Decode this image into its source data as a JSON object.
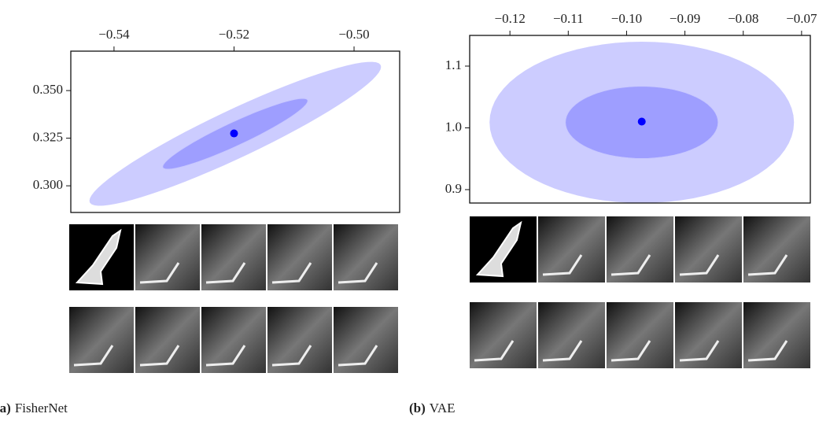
{
  "chart_data": [
    {
      "type": "scatter",
      "panel_label": "(a)",
      "title": "FisherNet",
      "x": [
        -0.52
      ],
      "y": [
        0.3275
      ],
      "color": "#0000ff",
      "ellipses": [
        {
          "cx": -0.5198,
          "cy": 0.3273,
          "x_halfwidth": 0.0243,
          "y_halfwidth": 0.0378,
          "correlation": 0.93,
          "color": "#ccccff"
        },
        {
          "cx": -0.5198,
          "cy": 0.3273,
          "x_halfwidth": 0.0121,
          "y_halfwidth": 0.0186,
          "correlation": 0.93,
          "color": "#9e9eff"
        }
      ],
      "xlim": [
        -0.5472,
        -0.4924
      ],
      "ylim": [
        0.286,
        0.3707
      ],
      "xticks": [
        {
          "value": -0.54,
          "label": "−0.54"
        },
        {
          "value": -0.52,
          "label": "−0.52"
        },
        {
          "value": -0.5,
          "label": "−0.50"
        }
      ],
      "yticks": [
        {
          "value": 0.3,
          "label": "0.300"
        },
        0.325,
        {
          "value": 0.35,
          "label": "0.350"
        }
      ]
    },
    {
      "type": "scatter",
      "panel_label": "(b)",
      "title": "VAE",
      "x": [
        -0.0974
      ],
      "y": [
        1.0102
      ],
      "color": "#0000ff",
      "ellipses": [
        {
          "cx": -0.0974,
          "cy": 1.0089,
          "x_halfwidth": 0.0261,
          "y_halfwidth": 0.1306,
          "correlation": 0,
          "color": "#ccccff"
        },
        {
          "cx": -0.0974,
          "cy": 1.0089,
          "x_halfwidth": 0.0131,
          "y_halfwidth": 0.0586,
          "correlation": 0,
          "color": "#9e9eff"
        }
      ],
      "xlim": [
        -0.1269,
        -0.0685
      ],
      "ylim": [
        0.8783,
        1.1497
      ],
      "xticks": [
        {
          "value": -0.12,
          "label": "−0.12"
        },
        {
          "value": -0.11,
          "label": "−0.11"
        },
        {
          "value": -0.1,
          "label": "−0.10"
        },
        {
          "value": -0.09,
          "label": "−0.09"
        },
        {
          "value": -0.08,
          "label": "−0.08"
        },
        {
          "value": -0.07,
          "label": "−0.07"
        }
      ],
      "yticks": [
        0.9,
        {
          "value": 1.0,
          "label": "1.0"
        },
        1.1
      ]
    }
  ]
}
